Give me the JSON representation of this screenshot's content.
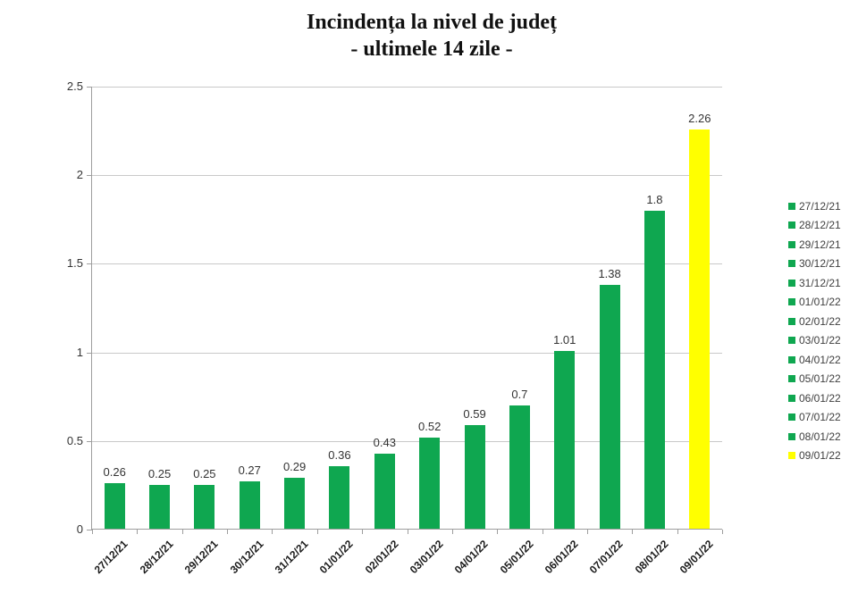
{
  "title": {
    "line1": "Incindența la nivel de județ",
    "line2": "- ultimele 14 zile -"
  },
  "chart_data": {
    "type": "bar",
    "title": "Incindența la nivel de județ - ultimele 14 zile -",
    "categories": [
      "27/12/21",
      "28/12/21",
      "29/12/21",
      "30/12/21",
      "31/12/21",
      "01/01/22",
      "02/01/22",
      "03/01/22",
      "04/01/22",
      "05/01/22",
      "06/01/22",
      "07/01/22",
      "08/01/22",
      "09/01/22"
    ],
    "values": [
      0.26,
      0.25,
      0.25,
      0.27,
      0.29,
      0.36,
      0.43,
      0.52,
      0.59,
      0.7,
      1.01,
      1.38,
      1.8,
      2.26
    ],
    "value_labels": [
      "0.26",
      "0.25",
      "0.25",
      "0.27",
      "0.29",
      "0.36",
      "0.43",
      "0.52",
      "0.59",
      "0.7",
      "1.01",
      "1.38",
      "1.8",
      "2.26"
    ],
    "xlabel": "",
    "ylabel": "",
    "ylim": [
      0,
      2.5
    ],
    "yticks": [
      0,
      0.5,
      1,
      1.5,
      2,
      2.5
    ],
    "ytick_labels": [
      "0",
      "0.5",
      "1",
      "1.5",
      "2",
      "2.5"
    ],
    "grid": true,
    "legend_position": "right",
    "bar_colors": [
      "#0FA750",
      "#0FA750",
      "#0FA750",
      "#0FA750",
      "#0FA750",
      "#0FA750",
      "#0FA750",
      "#0FA750",
      "#0FA750",
      "#0FA750",
      "#0FA750",
      "#0FA750",
      "#0FA750",
      "#FFFF00"
    ],
    "legend": [
      {
        "label": "27/12/21",
        "color": "#0FA750"
      },
      {
        "label": "28/12/21",
        "color": "#0FA750"
      },
      {
        "label": "29/12/21",
        "color": "#0FA750"
      },
      {
        "label": "30/12/21",
        "color": "#0FA750"
      },
      {
        "label": "31/12/21",
        "color": "#0FA750"
      },
      {
        "label": "01/01/22",
        "color": "#0FA750"
      },
      {
        "label": "02/01/22",
        "color": "#0FA750"
      },
      {
        "label": "03/01/22",
        "color": "#0FA750"
      },
      {
        "label": "04/01/22",
        "color": "#0FA750"
      },
      {
        "label": "05/01/22",
        "color": "#0FA750"
      },
      {
        "label": "06/01/22",
        "color": "#0FA750"
      },
      {
        "label": "07/01/22",
        "color": "#0FA750"
      },
      {
        "label": "08/01/22",
        "color": "#0FA750"
      },
      {
        "label": "09/01/22",
        "color": "#FFFF00"
      }
    ],
    "colors": {
      "bar_green": "#0FA750",
      "bar_highlight_yellow": "#FFFF00",
      "gridline": "#C9C9C9",
      "axis": "#9E9E9E",
      "tick_label_text": "#333333",
      "legend_text": "#3F3F3F",
      "title_text": "#111111"
    }
  }
}
